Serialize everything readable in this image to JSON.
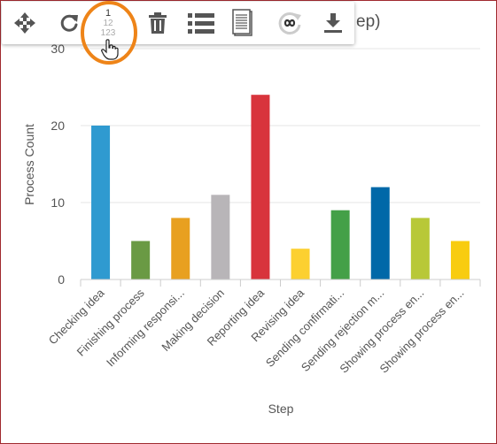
{
  "colors": {
    "frame_border": "#a0292e",
    "highlight_ring": "#ee8418",
    "toolbar_icon": "#555555",
    "grid": "#e6e6e6",
    "axis": "#cccccc",
    "text": "#555555"
  },
  "header": {
    "title_fragment": "ep)"
  },
  "toolbar": {
    "buttons": [
      {
        "icon": "move-arrows-icon"
      },
      {
        "icon": "refresh-icon"
      },
      {
        "icon": "number-format-icon",
        "lines": [
          "1",
          "12",
          "123"
        ]
      },
      {
        "icon": "trash-icon"
      },
      {
        "icon": "list-icon"
      },
      {
        "icon": "document-icon"
      },
      {
        "icon": "infinity-loop-icon"
      },
      {
        "icon": "download-icon"
      }
    ]
  },
  "chart_data": {
    "type": "bar",
    "title": "",
    "xlabel": "Step",
    "ylabel": "Process Count",
    "ylim": [
      0,
      30
    ],
    "yticks": [
      0,
      10,
      20,
      30
    ],
    "grid": true,
    "categories": [
      "Checking idea",
      "Finishing process",
      "Informing responsi...",
      "Making decision",
      "Reporting idea",
      "Revising idea",
      "Sending confirmati...",
      "Sending rejection m...",
      "Showing process en...",
      "Showing process en..."
    ],
    "values": [
      20,
      5,
      8,
      11,
      24,
      4,
      9,
      12,
      8,
      5
    ],
    "bar_colors": [
      "#2f9ad0",
      "#6a9a44",
      "#e8a020",
      "#b8b5b8",
      "#d8343c",
      "#fcd030",
      "#44a048",
      "#0068a8",
      "#b8c838",
      "#f8cc10"
    ]
  }
}
